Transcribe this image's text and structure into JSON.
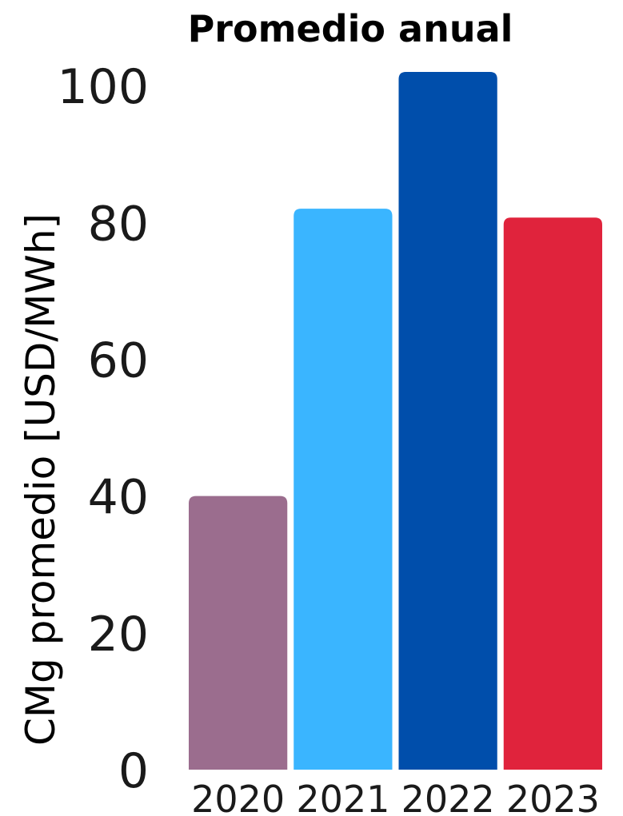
{
  "chart_data": {
    "type": "bar",
    "title": "Promedio anual",
    "xlabel": "",
    "ylabel": "CMg promedio [USD/MWh]",
    "categories": [
      "2020",
      "2021",
      "2022",
      "2023"
    ],
    "values": [
      40,
      82,
      102,
      80.7
    ],
    "colors": [
      "#9b6d8e",
      "#3ab5ff",
      "#004eab",
      "#e0233c"
    ],
    "ylim": [
      0,
      102
    ],
    "yticks": [
      "0",
      "20",
      "40",
      "60",
      "80",
      "100"
    ],
    "grid": false,
    "legend": "none"
  }
}
